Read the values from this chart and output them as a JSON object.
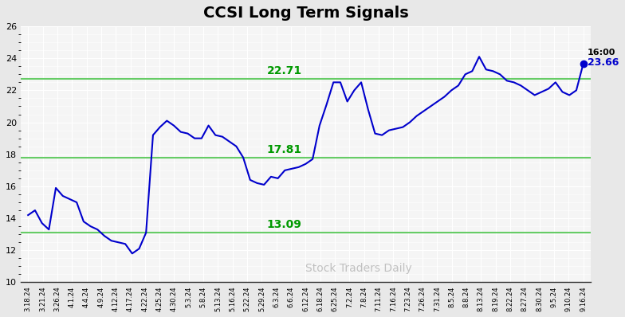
{
  "title": "CCSI Long Term Signals",
  "watermark": "Stock Traders Daily",
  "ylim": [
    10,
    26
  ],
  "yticks": [
    10,
    12,
    14,
    16,
    18,
    20,
    22,
    24,
    26
  ],
  "hlines": [
    13.09,
    17.81,
    22.71
  ],
  "hline_labels": [
    "13.09",
    "17.81",
    "22.71"
  ],
  "last_time": "16:00",
  "last_value": 23.66,
  "line_color": "#0000cc",
  "hline_color": "#66cc66",
  "bg_color": "#f0f0f0",
  "plot_bg": "#f8f8f8",
  "xtick_labels": [
    "3.18.24",
    "3.21.24",
    "3.26.24",
    "4.1.24",
    "4.4.24",
    "4.9.24",
    "4.12.24",
    "4.17.24",
    "4.22.24",
    "4.25.24",
    "4.30.24",
    "5.3.24",
    "5.8.24",
    "5.13.24",
    "5.16.24",
    "5.22.24",
    "5.29.24",
    "6.3.24",
    "6.6.24",
    "6.12.24",
    "6.18.24",
    "6.25.24",
    "7.2.24",
    "7.8.24",
    "7.11.24",
    "7.16.24",
    "7.23.24",
    "7.26.24",
    "7.31.24",
    "8.5.24",
    "8.8.24",
    "8.13.24",
    "8.19.24",
    "8.22.24",
    "8.27.24",
    "8.30.24",
    "9.5.24",
    "9.10.24",
    "9.16.24"
  ],
  "y_values": [
    14.2,
    14.5,
    13.7,
    13.3,
    15.9,
    15.4,
    15.2,
    15.0,
    13.8,
    13.5,
    13.3,
    12.9,
    12.6,
    12.5,
    12.4,
    11.8,
    12.1,
    13.1,
    19.2,
    19.7,
    20.1,
    19.8,
    19.4,
    19.3,
    19.0,
    19.0,
    19.8,
    19.2,
    19.1,
    18.8,
    18.5,
    17.8,
    16.4,
    16.2,
    16.1,
    16.6,
    16.5,
    17.0,
    17.1,
    17.2,
    17.4,
    17.7,
    19.8,
    21.1,
    22.5,
    22.5,
    21.3,
    22.0,
    22.5,
    20.8,
    19.3,
    19.2,
    19.5,
    19.6,
    19.7,
    20.0,
    20.4,
    20.7,
    21.0,
    21.3,
    21.6,
    22.0,
    22.3,
    23.0,
    23.2,
    24.1,
    23.3,
    23.2,
    23.0,
    22.6,
    22.5,
    22.3,
    22.0,
    21.7,
    21.9,
    22.1,
    22.5,
    21.9,
    21.7,
    22.0,
    23.66
  ]
}
